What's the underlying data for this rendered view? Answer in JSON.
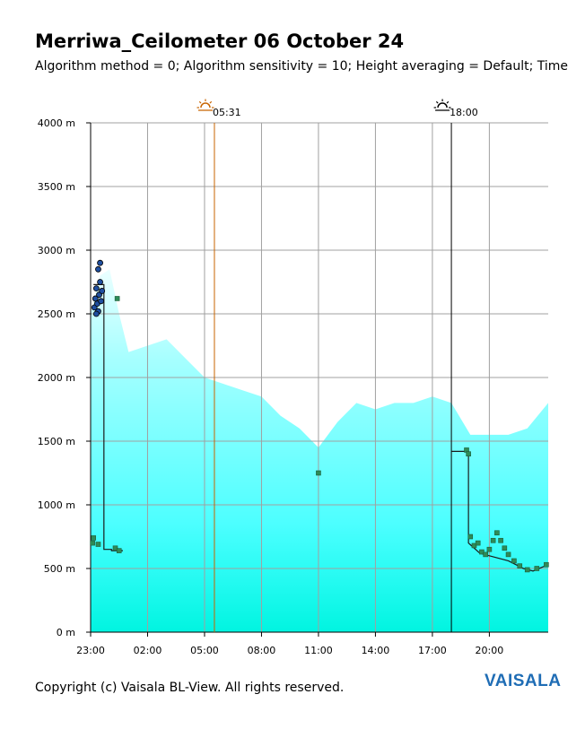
{
  "header": {
    "title": "Merriwa_Ceilometer 06 October 24",
    "subtitle": "Algorithm method = 0; Algorithm sensitivity = 10; Height averaging = Default; Time"
  },
  "footer": {
    "copyright": "Copyright (c) Vaisala BL-View. All rights reserved.",
    "brand": "VAISALA"
  },
  "colors": {
    "background_fill": "#00ffff",
    "grid": "#a0a0a0",
    "sunrise_line": "#c86400",
    "sunset_line": "#000000",
    "cloud_marker": "#2e8b57",
    "cloud_high": "#1f4fa0"
  },
  "chart_data": {
    "type": "scatter",
    "title": "Merriwa_Ceilometer 06 October 24",
    "y_unit": "m",
    "ylim": [
      0,
      4000
    ],
    "yticks": [
      0,
      500,
      1000,
      1500,
      2000,
      2500,
      3000,
      3500,
      4000
    ],
    "yticklabels": [
      "0 m",
      "500 m",
      "1000 m",
      "1500 m",
      "2000 m",
      "2500 m",
      "3000 m",
      "3500 m",
      "4000 m"
    ],
    "xlim_hours": [
      -1.0,
      23.1
    ],
    "xticks_hours": [
      -1,
      2,
      5,
      8,
      11,
      14,
      17,
      20
    ],
    "xticklabels": [
      "23:00",
      "02:00",
      "05:00",
      "08:00",
      "11:00",
      "14:00",
      "17:00",
      "20:00"
    ],
    "grid": true,
    "sun_events": [
      {
        "label": "05:31",
        "hour": 5.52,
        "kind": "sunrise"
      },
      {
        "label": "18:00",
        "hour": 18.0,
        "kind": "sunset"
      }
    ],
    "mixing_layer_top": {
      "hours": [
        -1,
        -0.5,
        0,
        0.5,
        1,
        2,
        3,
        4,
        5,
        6,
        7,
        8,
        9,
        10,
        11,
        12,
        13,
        14,
        15,
        16,
        17,
        18,
        19,
        20,
        21,
        22,
        23.1
      ],
      "height_m": [
        2500,
        2800,
        2850,
        2500,
        2200,
        2250,
        2300,
        2150,
        2000,
        1950,
        1900,
        1850,
        1700,
        1600,
        1450,
        1650,
        1800,
        1750,
        1800,
        1800,
        1850,
        1800,
        1550,
        1550,
        1550,
        1600,
        1800
      ]
    },
    "series": [
      {
        "name": "",
        "style": "step",
        "segments": [
          {
            "x": [
              -0.85,
              -0.3,
              -0.3,
              0.1,
              0.1,
              0.7
            ],
            "y": [
              2730,
              2730,
              650,
              650,
              640,
              640
            ]
          },
          {
            "x": [
              18.0,
              18.9,
              18.9,
              19.5,
              20.0,
              21.0,
              21.8,
              22.3,
              23.1
            ],
            "y": [
              1420,
              1420,
              700,
              620,
              600,
              560,
              500,
              480,
              530
            ]
          }
        ]
      },
      {
        "name": "",
        "style": "markers",
        "points": [
          {
            "x": -0.9,
            "y": 700
          },
          {
            "x": -0.85,
            "y": 740
          },
          {
            "x": -0.6,
            "y": 690
          },
          {
            "x": 0.3,
            "y": 660
          },
          {
            "x": 0.5,
            "y": 640
          },
          {
            "x": 0.4,
            "y": 2620
          },
          {
            "x": 11.0,
            "y": 1250
          },
          {
            "x": 18.8,
            "y": 1430
          },
          {
            "x": 18.9,
            "y": 1400
          },
          {
            "x": 19.0,
            "y": 750
          },
          {
            "x": 19.2,
            "y": 680
          },
          {
            "x": 19.4,
            "y": 700
          },
          {
            "x": 19.6,
            "y": 630
          },
          {
            "x": 19.8,
            "y": 610
          },
          {
            "x": 20.0,
            "y": 650
          },
          {
            "x": 20.2,
            "y": 720
          },
          {
            "x": 20.4,
            "y": 780
          },
          {
            "x": 20.6,
            "y": 720
          },
          {
            "x": 20.8,
            "y": 660
          },
          {
            "x": 21.0,
            "y": 610
          },
          {
            "x": 21.3,
            "y": 560
          },
          {
            "x": 21.6,
            "y": 520
          },
          {
            "x": 22.0,
            "y": 490
          },
          {
            "x": 22.5,
            "y": 500
          },
          {
            "x": 23.0,
            "y": 530
          }
        ]
      },
      {
        "name": "",
        "style": "cluster",
        "points": [
          {
            "x": -0.8,
            "y": 2550
          },
          {
            "x": -0.75,
            "y": 2620
          },
          {
            "x": -0.7,
            "y": 2700
          },
          {
            "x": -0.65,
            "y": 2580
          },
          {
            "x": -0.6,
            "y": 2520
          },
          {
            "x": -0.55,
            "y": 2650
          },
          {
            "x": -0.5,
            "y": 2750
          },
          {
            "x": -0.45,
            "y": 2600
          },
          {
            "x": -0.4,
            "y": 2680
          },
          {
            "x": -0.6,
            "y": 2850
          },
          {
            "x": -0.5,
            "y": 2900
          },
          {
            "x": -0.7,
            "y": 2500
          }
        ]
      }
    ]
  }
}
